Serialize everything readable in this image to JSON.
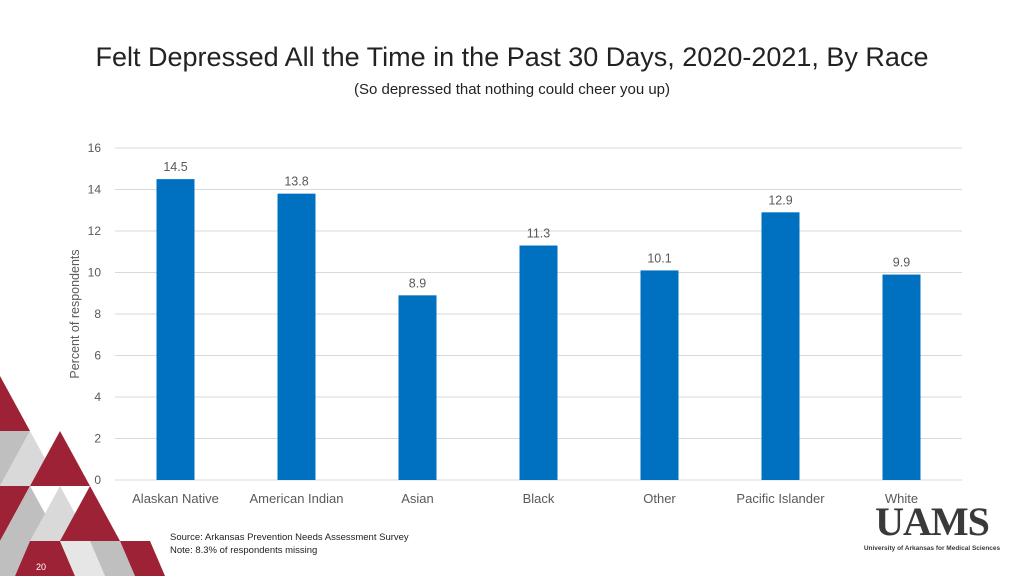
{
  "slide": {
    "title": "Felt Depressed All the Time in the Past 30 Days, 2020-2021, By Race",
    "subtitle": "(So depressed that nothing could cheer you up)",
    "source_note": "Source: Arkansas Prevention Needs Assessment Survey",
    "missing_note": "Note: 8.3% of respondents missing",
    "page_number": "20",
    "logo_text": "UAMS",
    "logo_subtext": "University of Arkansas for Medical Sciences"
  },
  "colors": {
    "bar": "#0070c0",
    "gridline": "#d9d9d9",
    "axis_text": "#595959",
    "decor_red": "#9d2235",
    "decor_gray": "#bfbfbf"
  },
  "chart_data": {
    "type": "bar",
    "title": "",
    "xlabel": "",
    "ylabel": "Percent of respondents",
    "categories": [
      "Alaskan Native",
      "American Indian",
      "Asian",
      "Black",
      "Other",
      "Pacific Islander",
      "White"
    ],
    "values": [
      14.5,
      13.8,
      8.9,
      11.3,
      10.1,
      12.9,
      9.9
    ],
    "data_labels": [
      "14.5",
      "13.8",
      "8.9",
      "11.3",
      "10.1",
      "12.9",
      "9.9"
    ],
    "ylim": [
      0,
      16
    ],
    "yticks": [
      0,
      2,
      4,
      6,
      8,
      10,
      12,
      14,
      16
    ],
    "grid": true,
    "legend": "none"
  }
}
